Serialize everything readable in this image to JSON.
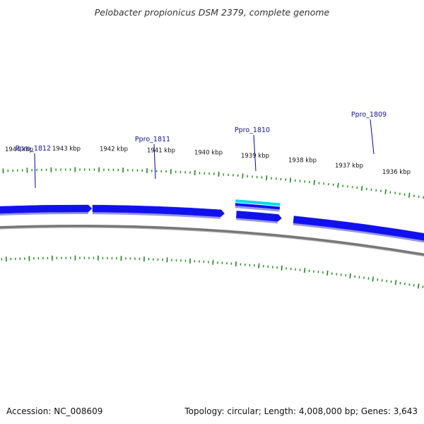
{
  "title": "Pelobacter propionicus DSM 2379, complete genome",
  "footer": {
    "accession": "Accession: NC_008609",
    "summary": "Topology: circular; Length: 4,008,000 bp; Genes: 3,643"
  },
  "colors": {
    "gene_fill": "#1111ee",
    "gene_shadow": "#9999dd",
    "backbone": "#777777",
    "tick": "#1a8a1a",
    "highlight": "#00dddd",
    "label_line": "#0000aa"
  },
  "kbp_labels": [
    "1944 kbp",
    "1943 kbp",
    "1942 kbp",
    "1941 kbp",
    "1940 kbp",
    "1939 kbp",
    "1938 kbp",
    "1937 kbp",
    "1936 kbp"
  ],
  "genes": [
    {
      "name": "Ppro_1812"
    },
    {
      "name": "Ppro_1811"
    },
    {
      "name": "Ppro_1810"
    },
    {
      "name": "Ppro_1809"
    }
  ]
}
